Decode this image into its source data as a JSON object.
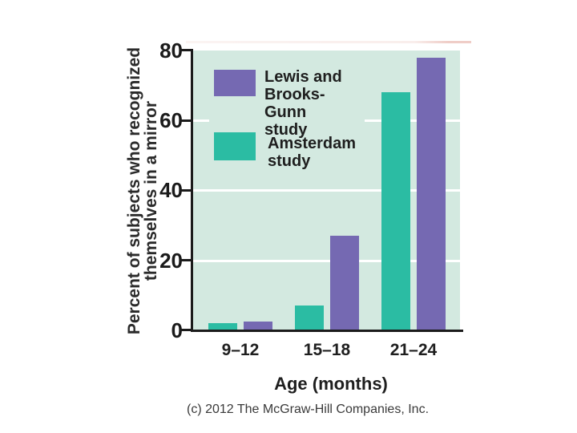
{
  "chart_data": {
    "type": "bar",
    "categories": [
      "9–12",
      "15–18",
      "21–24"
    ],
    "series": [
      {
        "name": "Lewis and\nBrooks-Gunn\nstudy",
        "color": "#7569b2",
        "values": [
          2.5,
          27,
          78
        ]
      },
      {
        "name": "Amsterdam\nstudy",
        "color": "#2bbca3",
        "values": [
          2,
          7,
          68
        ]
      }
    ],
    "xlabel": "Age (months)",
    "ylabel_lines": [
      "Percent of subjects who recognized",
      "themselves in a mirror"
    ],
    "ylim": [
      0,
      80
    ],
    "yticks": [
      0,
      20,
      40,
      60,
      80
    ],
    "grid": "white horizontal gridlines at 20, 40, 60",
    "legend_position": "top-left inside plot area",
    "plot_background": "#d3e9e0",
    "bar_layout": "Amsterdam (teal) bar on left, Lewis and Brooks-Gunn (purple) bar on right in each age group"
  },
  "footer": {
    "caption": "(c) 2012 The McGraw-Hill Companies, Inc."
  }
}
